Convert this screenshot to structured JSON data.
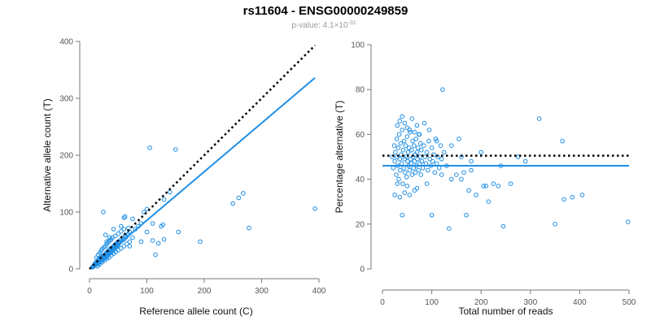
{
  "title": "rs11604 - ENSG00000249859",
  "subtitle": {
    "prefix": "p-value: 4.1×10",
    "exponent": "-31"
  },
  "colors": {
    "points": "#1f8fe6",
    "fit_line": "#1f8fe6",
    "reference_line": "#000000",
    "axes": "#777777"
  },
  "chart_data": [
    {
      "type": "scatter",
      "xlabel": "Reference allele count (C)",
      "ylabel": "Alternative allele count (T)",
      "xlim": [
        0,
        400
      ],
      "ylim": [
        0,
        400
      ],
      "xticks": [
        0,
        100,
        200,
        300,
        400
      ],
      "yticks": [
        0,
        100,
        200,
        300,
        400
      ],
      "grid": false,
      "reference_line": {
        "style": "dotted",
        "x": [
          0,
          393
        ],
        "y": [
          0,
          393
        ]
      },
      "fit_line": {
        "style": "solid",
        "x": [
          0,
          393
        ],
        "y": [
          0,
          336
        ]
      },
      "points": [
        [
          5,
          3
        ],
        [
          6,
          4
        ],
        [
          7,
          5
        ],
        [
          8,
          5
        ],
        [
          8,
          7
        ],
        [
          9,
          6
        ],
        [
          10,
          8
        ],
        [
          10,
          10
        ],
        [
          11,
          9
        ],
        [
          12,
          8
        ],
        [
          12,
          11
        ],
        [
          13,
          10
        ],
        [
          13,
          14
        ],
        [
          14,
          12
        ],
        [
          15,
          13
        ],
        [
          15,
          9
        ],
        [
          16,
          14
        ],
        [
          16,
          18
        ],
        [
          17,
          15
        ],
        [
          18,
          12
        ],
        [
          18,
          17
        ],
        [
          19,
          16
        ],
        [
          20,
          14
        ],
        [
          20,
          19
        ],
        [
          21,
          18
        ],
        [
          22,
          16
        ],
        [
          22,
          21
        ],
        [
          23,
          20
        ],
        [
          24,
          17
        ],
        [
          24,
          23
        ],
        [
          25,
          22
        ],
        [
          26,
          19
        ],
        [
          26,
          24
        ],
        [
          27,
          23
        ],
        [
          28,
          20
        ],
        [
          28,
          27
        ],
        [
          29,
          25
        ],
        [
          30,
          22
        ],
        [
          30,
          29
        ],
        [
          31,
          27
        ],
        [
          32,
          24
        ],
        [
          32,
          31
        ],
        [
          33,
          28
        ],
        [
          34,
          26
        ],
        [
          34,
          33
        ],
        [
          35,
          30
        ],
        [
          36,
          28
        ],
        [
          36,
          35
        ],
        [
          37,
          32
        ],
        [
          38,
          30
        ],
        [
          38,
          37
        ],
        [
          39,
          34
        ],
        [
          40,
          32
        ],
        [
          40,
          38
        ],
        [
          41,
          36
        ],
        [
          42,
          34
        ],
        [
          42,
          40
        ],
        [
          43,
          38
        ],
        [
          44,
          36
        ],
        [
          44,
          42
        ],
        [
          45,
          40
        ],
        [
          46,
          38
        ],
        [
          46,
          44
        ],
        [
          47,
          42
        ],
        [
          48,
          40
        ],
        [
          48,
          46
        ],
        [
          49,
          44
        ],
        [
          50,
          42
        ],
        [
          50,
          48
        ],
        [
          52,
          46
        ],
        [
          54,
          48
        ],
        [
          55,
          52
        ],
        [
          57,
          50
        ],
        [
          58,
          55
        ],
        [
          60,
          52
        ],
        [
          62,
          58
        ],
        [
          64,
          56
        ],
        [
          66,
          60
        ],
        [
          68,
          62
        ],
        [
          70,
          65
        ],
        [
          12,
          20
        ],
        [
          15,
          25
        ],
        [
          18,
          28
        ],
        [
          20,
          32
        ],
        [
          22,
          35
        ],
        [
          25,
          38
        ],
        [
          28,
          40
        ],
        [
          30,
          44
        ],
        [
          33,
          47
        ],
        [
          35,
          50
        ],
        [
          38,
          52
        ],
        [
          40,
          55
        ],
        [
          45,
          58
        ],
        [
          50,
          62
        ],
        [
          55,
          66
        ],
        [
          60,
          70
        ],
        [
          14,
          5
        ],
        [
          18,
          8
        ],
        [
          22,
          12
        ],
        [
          26,
          15
        ],
        [
          30,
          18
        ],
        [
          34,
          20
        ],
        [
          38,
          24
        ],
        [
          42,
          27
        ],
        [
          46,
          30
        ],
        [
          50,
          33
        ],
        [
          55,
          36
        ],
        [
          60,
          40
        ],
        [
          65,
          44
        ],
        [
          70,
          48
        ],
        [
          24,
          100
        ],
        [
          30,
          48
        ],
        [
          35,
          55
        ],
        [
          28,
          60
        ],
        [
          42,
          70
        ],
        [
          55,
          75
        ],
        [
          60,
          90
        ],
        [
          62,
          92
        ],
        [
          75,
          88
        ],
        [
          68,
          72
        ],
        [
          80,
          70
        ],
        [
          85,
          75
        ],
        [
          90,
          80
        ],
        [
          95,
          100
        ],
        [
          100,
          105
        ],
        [
          105,
          213
        ],
        [
          150,
          210
        ],
        [
          130,
          122
        ],
        [
          140,
          135
        ],
        [
          125,
          75
        ],
        [
          128,
          78
        ],
        [
          120,
          45
        ],
        [
          115,
          25
        ],
        [
          155,
          65
        ],
        [
          193,
          48
        ],
        [
          250,
          115
        ],
        [
          260,
          125
        ],
        [
          268,
          133
        ],
        [
          278,
          72
        ],
        [
          393,
          106
        ],
        [
          100,
          65
        ],
        [
          110,
          50
        ],
        [
          75,
          55
        ],
        [
          90,
          48
        ],
        [
          70,
          40
        ],
        [
          130,
          52
        ],
        [
          110,
          80
        ]
      ]
    },
    {
      "type": "scatter",
      "xlabel": "Total number of reads",
      "ylabel": "Percentage alternative (T)",
      "xlim": [
        0,
        500
      ],
      "ylim": [
        0,
        100
      ],
      "xticks": [
        0,
        100,
        200,
        300,
        400,
        500
      ],
      "yticks": [
        0,
        20,
        40,
        60,
        80,
        100
      ],
      "grid": false,
      "reference_line": {
        "style": "dotted",
        "x": [
          0,
          500
        ],
        "y": [
          50.5,
          50.5
        ]
      },
      "fit_line": {
        "style": "solid",
        "x": [
          0,
          500
        ],
        "y": [
          46,
          46
        ]
      },
      "points": [
        [
          20,
          50
        ],
        [
          22,
          45
        ],
        [
          24,
          55
        ],
        [
          25,
          48
        ],
        [
          26,
          52
        ],
        [
          28,
          42
        ],
        [
          29,
          58
        ],
        [
          30,
          50
        ],
        [
          31,
          46
        ],
        [
          32,
          54
        ],
        [
          33,
          40
        ],
        [
          34,
          60
        ],
        [
          35,
          49
        ],
        [
          36,
          44
        ],
        [
          37,
          56
        ],
        [
          38,
          51
        ],
        [
          39,
          47
        ],
        [
          40,
          62
        ],
        [
          41,
          38
        ],
        [
          42,
          53
        ],
        [
          43,
          45
        ],
        [
          44,
          57
        ],
        [
          45,
          49
        ],
        [
          46,
          43
        ],
        [
          47,
          55
        ],
        [
          48,
          50
        ],
        [
          49,
          41
        ],
        [
          50,
          59
        ],
        [
          51,
          48
        ],
        [
          52,
          52
        ],
        [
          53,
          46
        ],
        [
          54,
          54
        ],
        [
          55,
          44
        ],
        [
          56,
          61
        ],
        [
          57,
          49
        ],
        [
          58,
          47
        ],
        [
          59,
          53
        ],
        [
          60,
          42
        ],
        [
          61,
          57
        ],
        [
          62,
          50
        ],
        [
          63,
          45
        ],
        [
          64,
          55
        ],
        [
          65,
          48
        ],
        [
          66,
          51
        ],
        [
          67,
          43
        ],
        [
          68,
          58
        ],
        [
          69,
          46
        ],
        [
          70,
          52
        ],
        [
          71,
          49
        ],
        [
          72,
          54
        ],
        [
          73,
          44
        ],
        [
          74,
          60
        ],
        [
          75,
          47
        ],
        [
          76,
          50
        ],
        [
          77,
          56
        ],
        [
          78,
          42
        ],
        [
          79,
          53
        ],
        [
          80,
          48
        ],
        [
          82,
          45
        ],
        [
          84,
          55
        ],
        [
          86,
          50
        ],
        [
          88,
          47
        ],
        [
          90,
          52
        ],
        [
          92,
          44
        ],
        [
          94,
          57
        ],
        [
          96,
          49
        ],
        [
          98,
          46
        ],
        [
          100,
          54
        ],
        [
          102,
          48
        ],
        [
          104,
          51
        ],
        [
          106,
          43
        ],
        [
          108,
          58
        ],
        [
          110,
          47
        ],
        [
          112,
          50
        ],
        [
          115,
          45
        ],
        [
          118,
          55
        ],
        [
          120,
          49
        ],
        [
          125,
          52
        ],
        [
          30,
          64
        ],
        [
          35,
          66
        ],
        [
          40,
          68
        ],
        [
          45,
          65
        ],
        [
          50,
          63
        ],
        [
          55,
          62
        ],
        [
          60,
          67
        ],
        [
          65,
          61
        ],
        [
          70,
          64
        ],
        [
          75,
          60
        ],
        [
          85,
          65
        ],
        [
          95,
          62
        ],
        [
          110,
          57
        ],
        [
          25,
          33
        ],
        [
          35,
          32
        ],
        [
          45,
          34
        ],
        [
          55,
          33
        ],
        [
          65,
          35
        ],
        [
          40,
          24
        ],
        [
          30,
          38
        ],
        [
          50,
          37
        ],
        [
          70,
          36
        ],
        [
          90,
          38
        ],
        [
          100,
          24
        ],
        [
          120,
          42
        ],
        [
          122,
          80
        ],
        [
          135,
          18
        ],
        [
          140,
          40
        ],
        [
          150,
          42
        ],
        [
          155,
          58
        ],
        [
          160,
          40
        ],
        [
          165,
          43
        ],
        [
          170,
          24
        ],
        [
          175,
          35
        ],
        [
          180,
          44
        ],
        [
          190,
          33
        ],
        [
          200,
          52
        ],
        [
          205,
          37
        ],
        [
          210,
          37
        ],
        [
          215,
          30
        ],
        [
          225,
          38
        ],
        [
          235,
          37
        ],
        [
          240,
          46
        ],
        [
          245,
          19
        ],
        [
          260,
          38
        ],
        [
          275,
          50
        ],
        [
          290,
          48
        ],
        [
          318,
          67
        ],
        [
          350,
          20
        ],
        [
          365,
          57
        ],
        [
          368,
          31
        ],
        [
          385,
          32
        ],
        [
          405,
          33
        ],
        [
          498,
          21
        ],
        [
          140,
          55
        ],
        [
          130,
          46
        ],
        [
          160,
          50
        ],
        [
          180,
          48
        ]
      ]
    }
  ]
}
